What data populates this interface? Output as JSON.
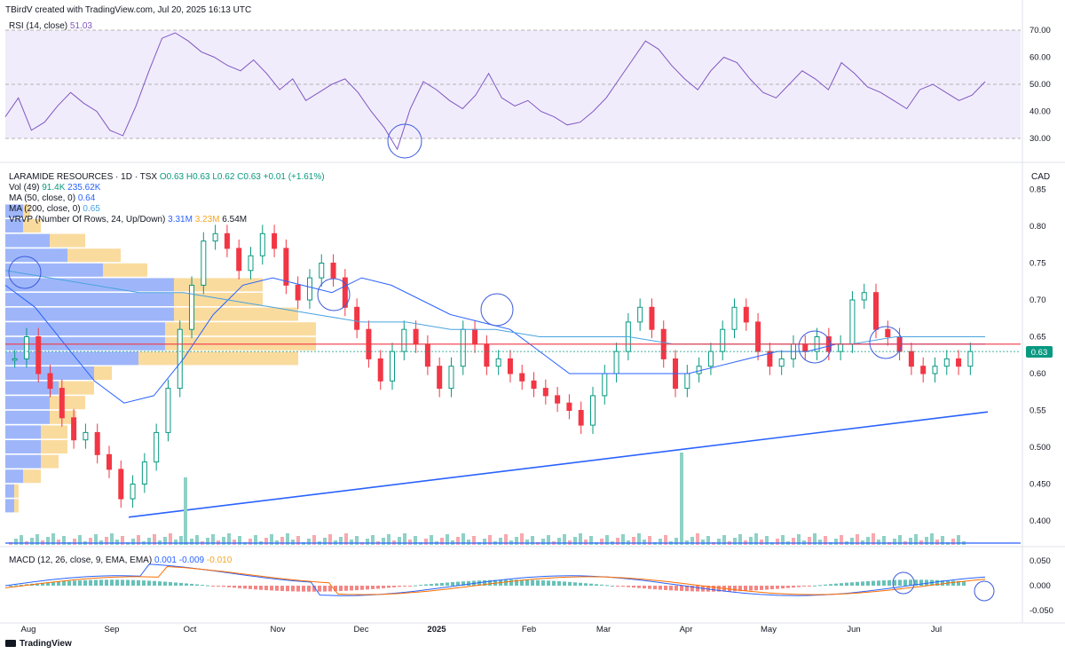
{
  "header": {
    "created_by": "TBirdV created with TradingView.com, Jul 20, 2025 16:13 UTC"
  },
  "rsi": {
    "label": "RSI (14, close)",
    "value": "51.03",
    "ticks": [
      "70.00",
      "60.00",
      "50.00",
      "40.00",
      "30.00"
    ],
    "line_color": "#7e57c2",
    "band_color": "#f1ecfb"
  },
  "price": {
    "symbol_line": "LARAMIDE RESOURCES · 1D · TSX",
    "ohlc": {
      "o": "O0.63",
      "h": "H0.63",
      "l": "L0.62",
      "c": "C0.63",
      "chg": "+0.01 (+1.61%)"
    },
    "currency": "CAD",
    "last_price": "0.63",
    "ticks": [
      "0.85",
      "0.80",
      "0.75",
      "0.70",
      "0.65",
      "0.60",
      "0.55",
      "0.500",
      "0.450",
      "0.400"
    ],
    "up_color": "#089981",
    "down_color": "#f23645",
    "resistance_level": 0.64
  },
  "indicators": {
    "vol": {
      "label": "Vol (49)",
      "v1": "91.4K",
      "v2": "235.62K"
    },
    "ma50": {
      "label": "MA (50, close, 0)",
      "value": "0.64"
    },
    "ma200": {
      "label": "MA (200, close, 0)",
      "value": "0.65"
    },
    "vrvp": {
      "label": "VRVP (Number Of Rows, 24, Up/Down)",
      "up": "3.31M",
      "down": "3.23M",
      "total": "6.54M"
    }
  },
  "macd": {
    "label": "MACD (12, 26, close, 9, EMA, EMA)",
    "v1": "0.001",
    "v2": "-0.009",
    "v3": "-0.010",
    "ticks": [
      "0.050",
      "0.000",
      "-0.050"
    ]
  },
  "x_axis": {
    "labels": [
      "Aug",
      "Sep",
      "Oct",
      "Nov",
      "Dec",
      "2025",
      "Feb",
      "Mar",
      "Apr",
      "May",
      "Jun",
      "Jul"
    ]
  },
  "footer": {
    "brand": "TradingView"
  },
  "chart_data": {
    "type": "candlestick",
    "symbol": "LARAMIDE RESOURCES",
    "timeframe": "1D",
    "exchange": "TSX",
    "ylim": [
      0.37,
      0.86
    ],
    "months": [
      "Aug",
      "Sep",
      "Oct",
      "Nov",
      "Dec",
      "2025",
      "Feb",
      "Mar",
      "Apr",
      "May",
      "Jun",
      "Jul"
    ],
    "close_path": [
      0.62,
      0.65,
      0.6,
      0.58,
      0.54,
      0.51,
      0.52,
      0.49,
      0.47,
      0.43,
      0.45,
      0.48,
      0.52,
      0.58,
      0.66,
      0.72,
      0.78,
      0.79,
      0.77,
      0.74,
      0.76,
      0.79,
      0.77,
      0.72,
      0.7,
      0.73,
      0.75,
      0.73,
      0.69,
      0.66,
      0.62,
      0.59,
      0.63,
      0.66,
      0.64,
      0.61,
      0.58,
      0.61,
      0.66,
      0.64,
      0.61,
      0.62,
      0.6,
      0.59,
      0.58,
      0.57,
      0.56,
      0.55,
      0.53,
      0.57,
      0.6,
      0.63,
      0.67,
      0.69,
      0.66,
      0.62,
      0.58,
      0.6,
      0.61,
      0.63,
      0.66,
      0.69,
      0.67,
      0.63,
      0.61,
      0.62,
      0.64,
      0.63,
      0.65,
      0.63,
      0.64,
      0.7,
      0.71,
      0.66,
      0.65,
      0.63,
      0.61,
      0.6,
      0.61,
      0.62,
      0.61,
      0.63
    ],
    "rsi_path": [
      38,
      45,
      33,
      36,
      42,
      47,
      43,
      40,
      33,
      31,
      42,
      55,
      67,
      69,
      66,
      62,
      60,
      57,
      55,
      59,
      54,
      48,
      52,
      44,
      47,
      50,
      52,
      47,
      40,
      34,
      26,
      41,
      51,
      48,
      44,
      41,
      46,
      54,
      45,
      42,
      44,
      40,
      38,
      35,
      36,
      40,
      45,
      52,
      59,
      66,
      63,
      57,
      52,
      48,
      55,
      60,
      58,
      52,
      47,
      45,
      50,
      55,
      52,
      48,
      58,
      54,
      49,
      47,
      44,
      41,
      48,
      50,
      47,
      44,
      46,
      51
    ],
    "ma50_path": [
      0.72,
      0.69,
      0.64,
      0.59,
      0.56,
      0.57,
      0.62,
      0.68,
      0.72,
      0.73,
      0.72,
      0.71,
      0.73,
      0.72,
      0.7,
      0.68,
      0.67,
      0.66,
      0.63,
      0.6,
      0.6,
      0.6,
      0.6,
      0.6,
      0.61,
      0.62,
      0.63,
      0.63,
      0.64,
      0.64,
      0.64,
      0.64,
      0.64,
      0.64
    ],
    "ma200_path": [
      0.74,
      0.73,
      0.72,
      0.71,
      0.71,
      0.7,
      0.69,
      0.68,
      0.67,
      0.67,
      0.66,
      0.66,
      0.65,
      0.65,
      0.65,
      0.64,
      0.64,
      0.64,
      0.64,
      0.64,
      0.65,
      0.65,
      0.65
    ],
    "trendline": {
      "from_price": 0.405,
      "to_price": 0.548
    },
    "horizontal_line": 0.64,
    "annotations": [
      "circle",
      "circle",
      "circle",
      "circle",
      "circle",
      "circle",
      "circle",
      "circle"
    ]
  }
}
